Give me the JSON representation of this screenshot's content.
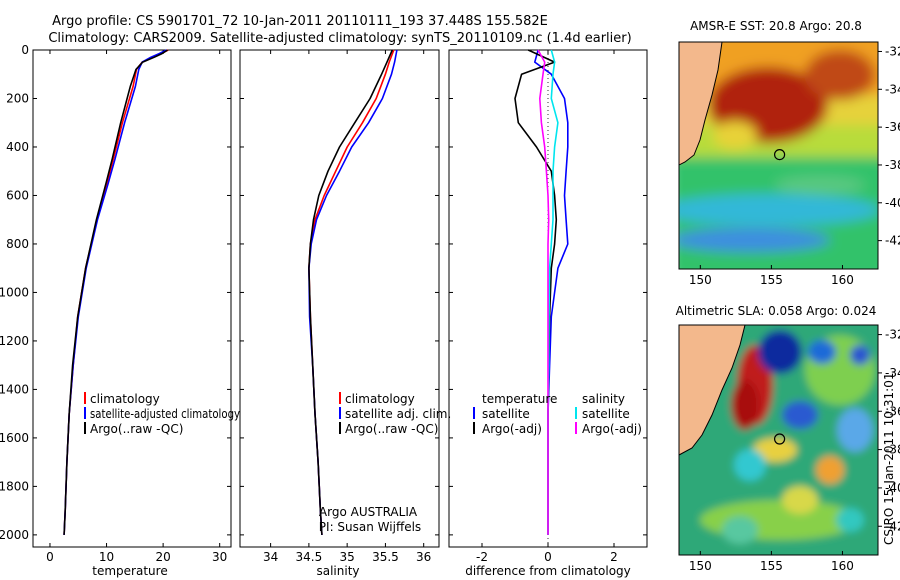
{
  "header": {
    "line1": "Argo profile: CS 5901701_72 10-Jan-2011 20110111_193 37.448S 155.582E",
    "line2": "Climatology: CARS2009. Satellite-adjusted climatology: synTS_20110109.nc (1.4d earlier)"
  },
  "footer_text": "CSIRO 15-Jan-2011 10:31:01",
  "colors": {
    "climatology": "#ff0000",
    "satellite": "#0000ff",
    "argo": "#000000",
    "cyan": "#00e5ee",
    "magenta": "#ff00ff"
  },
  "chart_data": [
    {
      "type": "line",
      "name": "temperature",
      "xlabel": "temperature",
      "ylabel": "",
      "xlim": [
        -3,
        32
      ],
      "ylim": [
        2050,
        0
      ],
      "xticks": [
        "0",
        "10",
        "20",
        "30"
      ],
      "yticks": [
        "0",
        "200",
        "400",
        "600",
        "800",
        "1000",
        "1200",
        "1400",
        "1600",
        "1800",
        "2000"
      ],
      "legend": [
        "climatology",
        "satellite-adjusted climatology",
        "Argo(..raw -QC)"
      ],
      "series": [
        {
          "name": "climatology",
          "color": "#ff0000",
          "x": [
            20.9,
            19.7,
            18.2,
            16.3,
            15.3,
            14.7,
            12.8,
            11.2,
            10.1,
            8.3,
            6.3,
            4.9,
            4.1,
            3.4,
            3.0,
            2.7,
            2.5
          ],
          "y": [
            0,
            15,
            30,
            50,
            80,
            150,
            300,
            450,
            550,
            700,
            900,
            1100,
            1300,
            1500,
            1700,
            1900,
            2000
          ]
        },
        {
          "name": "satellite-adjusted climatology",
          "color": "#0000ff",
          "x": [
            20.6,
            19.3,
            17.8,
            16.3,
            15.7,
            15.1,
            13.2,
            11.5,
            10.3,
            8.4,
            6.4,
            5.0,
            4.1,
            3.4,
            3.0,
            2.7,
            2.5
          ],
          "y": [
            0,
            15,
            30,
            50,
            80,
            150,
            300,
            450,
            550,
            700,
            900,
            1100,
            1300,
            1500,
            1700,
            1900,
            2000
          ]
        },
        {
          "name": "Argo(..raw -QC)",
          "color": "#000000",
          "x": [
            20.8,
            19.8,
            18.4,
            16.4,
            15.2,
            14.2,
            12.5,
            11.0,
            9.9,
            8.2,
            6.3,
            4.9,
            4.0,
            3.4,
            3.0,
            2.7,
            2.5
          ],
          "y": [
            0,
            15,
            30,
            50,
            80,
            150,
            300,
            450,
            550,
            700,
            900,
            1100,
            1300,
            1500,
            1700,
            1900,
            2000
          ]
        }
      ]
    },
    {
      "type": "line",
      "name": "salinity",
      "xlabel": "salinity",
      "xlim": [
        33.6,
        36.2
      ],
      "ylim": [
        2050,
        0
      ],
      "xticks": [
        "34",
        "34.5",
        "35",
        "35.5",
        "36"
      ],
      "legend": [
        "climatology",
        "satellite adj. clim.",
        "Argo(..raw -QC)"
      ],
      "annotation": [
        "Argo AUSTRALIA",
        "PI: Susan Wijffels"
      ],
      "series": [
        {
          "name": "climatology",
          "color": "#ff0000",
          "x": [
            35.61,
            35.55,
            35.5,
            35.38,
            35.2,
            35.0,
            34.85,
            34.7,
            34.58,
            34.52,
            34.5,
            34.52,
            34.55,
            34.58,
            34.62,
            34.65,
            34.67
          ],
          "y": [
            0,
            50,
            100,
            200,
            300,
            400,
            500,
            600,
            700,
            800,
            900,
            1100,
            1300,
            1500,
            1700,
            1900,
            2000
          ]
        },
        {
          "name": "satellite adj. clim.",
          "color": "#0000ff",
          "x": [
            35.65,
            35.62,
            35.58,
            35.46,
            35.28,
            35.06,
            34.9,
            34.73,
            34.6,
            34.53,
            34.5,
            34.51,
            34.55,
            34.58,
            34.62,
            34.65,
            34.67
          ],
          "y": [
            0,
            50,
            100,
            200,
            300,
            400,
            500,
            600,
            700,
            800,
            900,
            1100,
            1300,
            1500,
            1700,
            1900,
            2000
          ]
        },
        {
          "name": "Argo(..raw -QC)",
          "color": "#000000",
          "x": [
            35.59,
            35.52,
            35.45,
            35.3,
            35.1,
            34.9,
            34.75,
            34.63,
            34.56,
            34.52,
            34.5,
            34.52,
            34.55,
            34.58,
            34.62,
            34.65,
            34.67
          ],
          "y": [
            0,
            50,
            100,
            200,
            300,
            400,
            500,
            600,
            700,
            800,
            900,
            1100,
            1300,
            1500,
            1700,
            1900,
            2000
          ]
        }
      ]
    },
    {
      "type": "line",
      "name": "difference",
      "xlabel": "difference from climatology",
      "xlim": [
        -3,
        3
      ],
      "ylim": [
        2050,
        0
      ],
      "xticks": [
        "-2",
        "0",
        "2"
      ],
      "legend_temperature": [
        "temperature",
        "satellite",
        "Argo(-adj)"
      ],
      "legend_salinity": [
        "salinity",
        "satellite",
        "Argo(-adj)"
      ],
      "series": [
        {
          "name": "temperature satellite",
          "color": "#0000ff",
          "x": [
            -0.3,
            -0.4,
            0.1,
            0.5,
            0.6,
            0.6,
            0.55,
            0.5,
            0.55,
            0.6,
            0.3,
            0.1,
            0.05,
            0.0,
            0.0,
            0.0,
            0.0
          ],
          "y": [
            0,
            50,
            100,
            200,
            300,
            400,
            500,
            600,
            700,
            800,
            900,
            1100,
            1300,
            1500,
            1700,
            1900,
            2000
          ]
        },
        {
          "name": "temperature Argo(-adj)",
          "color": "#000000",
          "x": [
            -0.6,
            0.2,
            -0.8,
            -1.0,
            -0.9,
            -0.35,
            0.1,
            0.2,
            0.25,
            0.2,
            0.1,
            0.05,
            0.02,
            0.0,
            0.0,
            0.0,
            0.0
          ],
          "y": [
            0,
            50,
            100,
            200,
            300,
            400,
            500,
            600,
            700,
            800,
            900,
            1100,
            1300,
            1500,
            1700,
            1900,
            2000
          ]
        },
        {
          "name": "salinity satellite",
          "color": "#00e5ee",
          "x": [
            0.1,
            0.2,
            0.15,
            0.1,
            0.3,
            0.2,
            0.15,
            0.15,
            0.15,
            0.1,
            0.05,
            0.03,
            0.02,
            0.0,
            0.0,
            0.0,
            0.0
          ],
          "y": [
            0,
            50,
            100,
            200,
            300,
            400,
            500,
            600,
            700,
            800,
            900,
            1100,
            1300,
            1500,
            1700,
            1900,
            2000
          ]
        },
        {
          "name": "salinity Argo(-adj)",
          "color": "#ff00ff",
          "x": [
            -0.3,
            -0.1,
            -0.15,
            -0.25,
            -0.2,
            -0.1,
            -0.05,
            0.0,
            0.02,
            0.0,
            0.0,
            0.0,
            0.0,
            0.0,
            0.0,
            0.0,
            0.0
          ],
          "y": [
            0,
            50,
            100,
            200,
            300,
            400,
            500,
            600,
            700,
            800,
            900,
            1100,
            1300,
            1500,
            1700,
            1900,
            2000
          ]
        }
      ]
    },
    {
      "type": "heatmap",
      "name": "sst map",
      "title": "AMSR-E SST: 20.8 Argo: 20.8",
      "xticks": [
        "150",
        "155",
        "160"
      ],
      "yticks": [
        "-32",
        "-34",
        "-36",
        "-38",
        "-40",
        "-42"
      ],
      "xlim": [
        148.5,
        162.5
      ],
      "ylim": [
        -43.5,
        -31.5
      ],
      "marker": {
        "lon": 155.58,
        "lat": -37.45
      }
    },
    {
      "type": "heatmap",
      "name": "sla map",
      "title": "Altimetric SLA: 0.058 Argo: 0.024",
      "xticks": [
        "150",
        "155",
        "160"
      ],
      "yticks": [
        "-32",
        "-34",
        "-36",
        "-38",
        "-40",
        "-42"
      ],
      "xlim": [
        148.5,
        162.5
      ],
      "ylim": [
        -43.5,
        -31.5
      ],
      "marker": {
        "lon": 155.58,
        "lat": -37.45
      }
    }
  ]
}
